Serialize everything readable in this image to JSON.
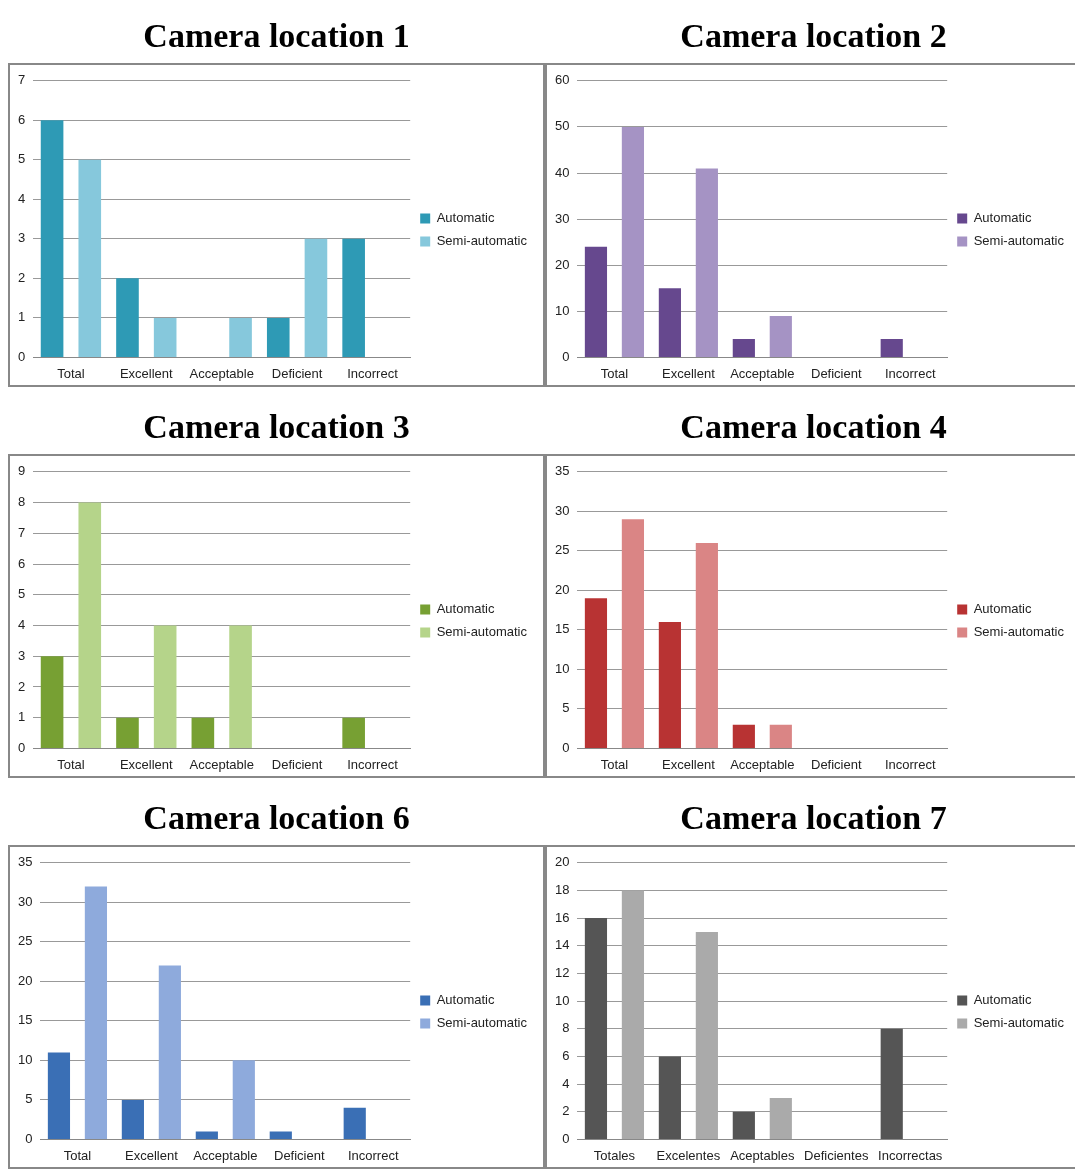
{
  "chart_data": [
    {
      "type": "bar",
      "title": "Camera location 1",
      "categories": [
        "Total",
        "Excellent",
        "Acceptable",
        "Deficient",
        "Incorrect"
      ],
      "series": [
        {
          "name": "Automatic",
          "color": "#2e9ab5",
          "values": [
            6,
            2,
            0,
            1,
            3
          ]
        },
        {
          "name": "Semi-automatic",
          "color": "#86c8dc",
          "values": [
            5,
            1,
            1,
            3,
            0
          ]
        }
      ],
      "ylim": [
        0,
        7
      ],
      "yticks": [
        0,
        1,
        2,
        3,
        4,
        5,
        6,
        7
      ],
      "grid": "y",
      "legend": "right"
    },
    {
      "type": "bar",
      "title": "Camera location 2",
      "categories": [
        "Total",
        "Excellent",
        "Acceptable",
        "Deficient",
        "Incorrect"
      ],
      "series": [
        {
          "name": "Automatic",
          "color": "#66488e",
          "values": [
            24,
            15,
            4,
            0,
            4
          ]
        },
        {
          "name": "Semi-automatic",
          "color": "#a593c4",
          "values": [
            50,
            41,
            9,
            0,
            0
          ]
        }
      ],
      "ylim": [
        0,
        60
      ],
      "yticks": [
        0,
        10,
        20,
        30,
        40,
        50,
        60
      ],
      "grid": "y",
      "legend": "right"
    },
    {
      "type": "bar",
      "title": "Camera location 3",
      "categories": [
        "Total",
        "Excellent",
        "Acceptable",
        "Deficient",
        "Incorrect"
      ],
      "series": [
        {
          "name": "Automatic",
          "color": "#77a033",
          "values": [
            3,
            1,
            1,
            0,
            1
          ]
        },
        {
          "name": "Semi-automatic",
          "color": "#b5d48a",
          "values": [
            8,
            4,
            4,
            0,
            0
          ]
        }
      ],
      "ylim": [
        0,
        9
      ],
      "yticks": [
        0,
        1,
        2,
        3,
        4,
        5,
        6,
        7,
        8,
        9
      ],
      "grid": "y",
      "legend": "right"
    },
    {
      "type": "bar",
      "title": "Camera location 4",
      "categories": [
        "Total",
        "Excellent",
        "Acceptable",
        "Deficient",
        "Incorrect"
      ],
      "series": [
        {
          "name": "Automatic",
          "color": "#b83333",
          "values": [
            19,
            16,
            3,
            0,
            0
          ]
        },
        {
          "name": "Semi-automatic",
          "color": "#da8585",
          "values": [
            29,
            26,
            3,
            0,
            0
          ]
        }
      ],
      "ylim": [
        0,
        35
      ],
      "yticks": [
        0,
        5,
        10,
        15,
        20,
        25,
        30,
        35
      ],
      "grid": "y",
      "legend": "right"
    },
    {
      "type": "bar",
      "title": "Camera location 6",
      "categories": [
        "Total",
        "Excellent",
        "Acceptable",
        "Deficient",
        "Incorrect"
      ],
      "series": [
        {
          "name": "Automatic",
          "color": "#3a6fb5",
          "values": [
            11,
            5,
            1,
            1,
            4
          ]
        },
        {
          "name": "Semi-automatic",
          "color": "#8eaadc",
          "values": [
            32,
            22,
            10,
            0,
            0
          ]
        }
      ],
      "ylim": [
        0,
        35
      ],
      "yticks": [
        0,
        5,
        10,
        15,
        20,
        25,
        30,
        35
      ],
      "grid": "y",
      "legend": "right"
    },
    {
      "type": "bar",
      "title": "Camera location 7",
      "categories": [
        "Totales",
        "Excelentes",
        "Aceptables",
        "Deficientes",
        "Incorrectas"
      ],
      "series": [
        {
          "name": "Automatic",
          "color": "#555555",
          "values": [
            16,
            6,
            2,
            0,
            8
          ]
        },
        {
          "name": "Semi-automatic",
          "color": "#aaaaaa",
          "values": [
            18,
            15,
            3,
            0,
            0
          ]
        }
      ],
      "ylim": [
        0,
        20
      ],
      "yticks": [
        0,
        2,
        4,
        6,
        8,
        10,
        12,
        14,
        16,
        18,
        20
      ],
      "grid": "y",
      "legend": "right"
    }
  ]
}
